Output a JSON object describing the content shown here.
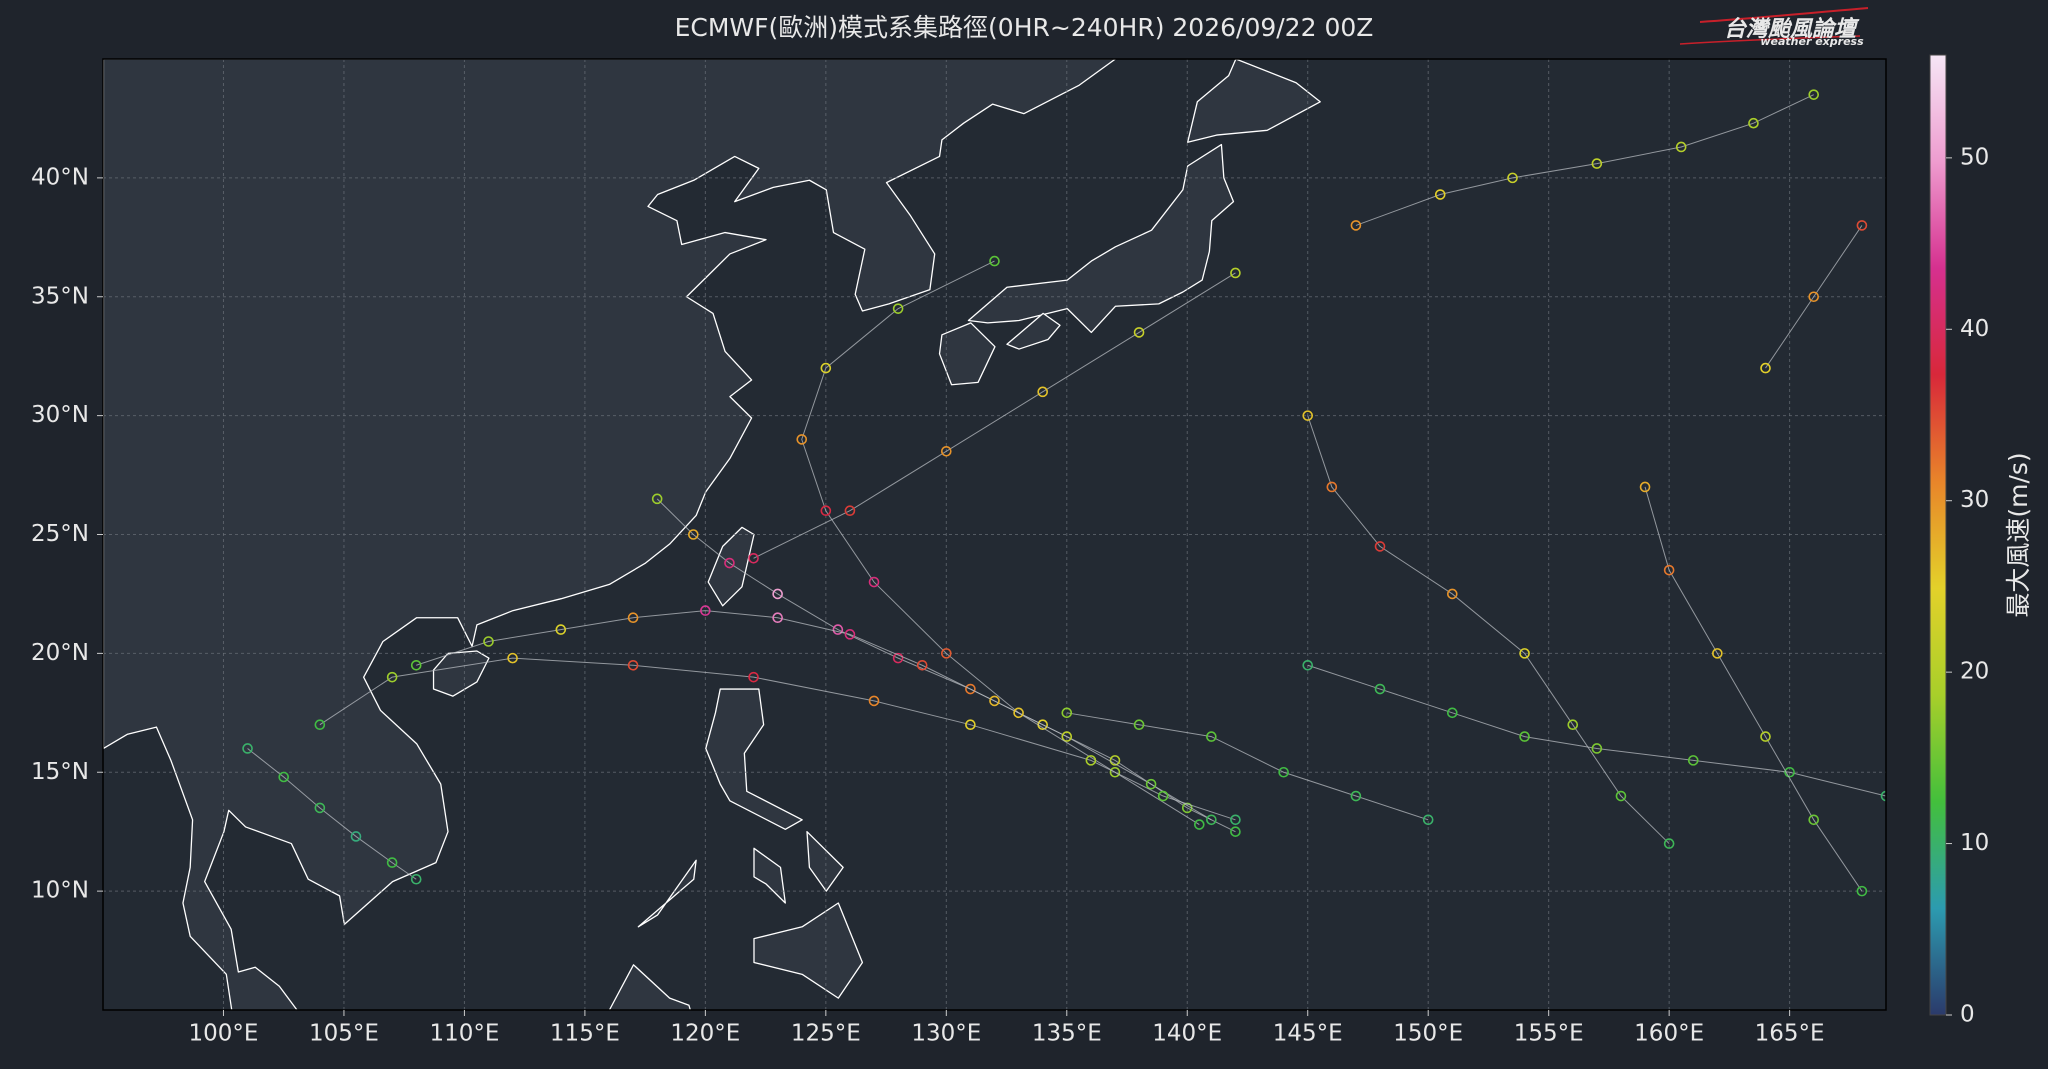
{
  "chart_data": {
    "type": "track-map",
    "title": "ECMWF(歐洲)模式系集路徑(0HR~240HR) 2026/09/22 00Z",
    "logo": {
      "title": "台灣颱風論壇",
      "subtitle": "weather express"
    },
    "xlim": [
      95,
      169
    ],
    "ylim": [
      5,
      45
    ],
    "xticks": [
      {
        "value": 100,
        "label": "100°E"
      },
      {
        "value": 105,
        "label": "105°E"
      },
      {
        "value": 110,
        "label": "110°E"
      },
      {
        "value": 115,
        "label": "115°E"
      },
      {
        "value": 120,
        "label": "120°E"
      },
      {
        "value": 125,
        "label": "125°E"
      },
      {
        "value": 130,
        "label": "130°E"
      },
      {
        "value": 135,
        "label": "135°E"
      },
      {
        "value": 140,
        "label": "140°E"
      },
      {
        "value": 145,
        "label": "145°E"
      },
      {
        "value": 150,
        "label": "150°E"
      },
      {
        "value": 155,
        "label": "155°E"
      },
      {
        "value": 160,
        "label": "160°E"
      },
      {
        "value": 165,
        "label": "165°E"
      }
    ],
    "yticks": [
      {
        "value": 10,
        "label": "10°N"
      },
      {
        "value": 15,
        "label": "15°N"
      },
      {
        "value": 20,
        "label": "20°N"
      },
      {
        "value": 25,
        "label": "25°N"
      },
      {
        "value": 30,
        "label": "30°N"
      },
      {
        "value": 35,
        "label": "35°N"
      },
      {
        "value": 40,
        "label": "40°N"
      }
    ],
    "grid": true,
    "colorbar": {
      "label": "最大風速(m/s)",
      "lim": [
        0,
        56
      ],
      "ticks": [
        0,
        10,
        20,
        30,
        40,
        50
      ],
      "colormap": [
        "#2b3a6b",
        "#2c9bb0",
        "#43bf3c",
        "#a8cf2a",
        "#e3d12a",
        "#e8852a",
        "#d8283a",
        "#d6308f",
        "#ee9ccf",
        "#f6e6f6"
      ]
    },
    "tracks": [
      {
        "lon": [
          142,
          140,
          137,
          134,
          131,
          128,
          125.5,
          123,
          121,
          119.5,
          118
        ],
        "lat": [
          12.5,
          13.5,
          15.5,
          17,
          18.5,
          19.8,
          21,
          22.5,
          23.8,
          25,
          26.5
        ],
        "wind": [
          12,
          16,
          20,
          25,
          32,
          40,
          46,
          50,
          42,
          28,
          18
        ]
      },
      {
        "lon": [
          141,
          138.5,
          135,
          132,
          129,
          126,
          123,
          120,
          117,
          114,
          111,
          108
        ],
        "lat": [
          13,
          14.5,
          16.5,
          18,
          19.5,
          20.8,
          21.5,
          21.8,
          21.5,
          21,
          20.5,
          19.5
        ],
        "wind": [
          11,
          15,
          21,
          27,
          35,
          42,
          48,
          44,
          30,
          24,
          18,
          14
        ]
      },
      {
        "lon": [
          140.5,
          137,
          133,
          130,
          127,
          125,
          124,
          125,
          128,
          132
        ],
        "lat": [
          12.8,
          15,
          17.5,
          20,
          23,
          26,
          29,
          32,
          34.5,
          36.5
        ],
        "wind": [
          12,
          18,
          26,
          34,
          42,
          38,
          30,
          24,
          18,
          14
        ]
      },
      {
        "lon": [
          142,
          139,
          136,
          131,
          127,
          122,
          117,
          112,
          107,
          104
        ],
        "lat": [
          13,
          14,
          15.5,
          17,
          18,
          19,
          19.5,
          19.8,
          19,
          17
        ],
        "wind": [
          10,
          14,
          19,
          25,
          31,
          38,
          35,
          26,
          18,
          12
        ]
      },
      {
        "lon": [
          147,
          150.5,
          153.5,
          157,
          160.5,
          163.5,
          166
        ],
        "lat": [
          38,
          39.3,
          40,
          40.6,
          41.3,
          42.3,
          43.5
        ],
        "wind": [
          30,
          25,
          22,
          21,
          20,
          19,
          18
        ]
      },
      {
        "lon": [
          101,
          102.5,
          104,
          105.5,
          107,
          108
        ],
        "lat": [
          16,
          14.8,
          13.5,
          12.3,
          11.2,
          10.5
        ],
        "wind": [
          10,
          12,
          11,
          9,
          12,
          10
        ]
      },
      {
        "lon": [
          169,
          165,
          161,
          157,
          154,
          151,
          148,
          145
        ],
        "lat": [
          14,
          15,
          15.5,
          16,
          16.5,
          17.5,
          18.5,
          19.5
        ],
        "wind": [
          10,
          12,
          14,
          16,
          14,
          12,
          11,
          10
        ]
      },
      {
        "lon": [
          160,
          158,
          156,
          154,
          151,
          148,
          146,
          145
        ],
        "lat": [
          12,
          14,
          17,
          20,
          22.5,
          24.5,
          27,
          30
        ],
        "wind": [
          11,
          14,
          18,
          24,
          30,
          36,
          32,
          26
        ]
      },
      {
        "lon": [
          168,
          166,
          164,
          162,
          160,
          159
        ],
        "lat": [
          10,
          13,
          16.5,
          20,
          23.5,
          27
        ],
        "wind": [
          12,
          15,
          20,
          26,
          32,
          28
        ]
      },
      {
        "lon": [
          150,
          147,
          144,
          141,
          138,
          135
        ],
        "lat": [
          13,
          14,
          15,
          16.5,
          17,
          17.5
        ],
        "wind": [
          10,
          11,
          12,
          14,
          15,
          17
        ]
      },
      {
        "lon": [
          122,
          126,
          130,
          134,
          138,
          142
        ],
        "lat": [
          24,
          26,
          28.5,
          31,
          33.5,
          36
        ],
        "wind": [
          40,
          36,
          30,
          26,
          22,
          20
        ]
      },
      {
        "lon": [
          164,
          166,
          168
        ],
        "lat": [
          32,
          35,
          38
        ],
        "wind": [
          25,
          30,
          35
        ]
      }
    ]
  }
}
